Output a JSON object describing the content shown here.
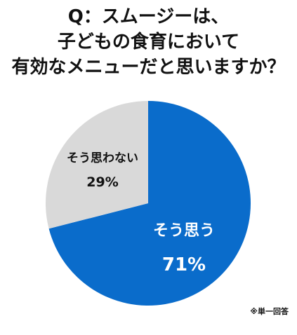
{
  "title_lines": [
    "Q：スムージーは、",
    "子どもの食育において",
    "有効なメニューだと思いますか？"
  ],
  "note": "※単一回答",
  "colors": {
    "yes": "#0a6ccb",
    "no": "#d9d9d9",
    "yes_text": "#ffffff",
    "no_text": "#111111"
  },
  "chart_data": {
    "type": "pie",
    "title": "Q：スムージーは、子どもの食育において有効なメニューだと思いますか？",
    "slices": [
      {
        "label": "そう思う",
        "value": 71,
        "display": "71%"
      },
      {
        "label": "そう思わない",
        "value": 29,
        "display": "29%"
      }
    ]
  }
}
